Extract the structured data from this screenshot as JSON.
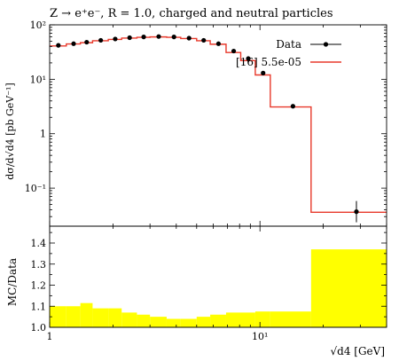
{
  "chart_data": {
    "type": "line",
    "title": "Z → e⁺e⁻, R = 1.0, charged and neutral particles",
    "xlabel": "√d4 [GeV]",
    "ylabel": "dσ/d√d4 [pb GeV⁻¹]",
    "xscale": "log",
    "yscale": "log",
    "xlim": [
      1,
      40
    ],
    "ylim": [
      0.02,
      100
    ],
    "x_ticks": [
      {
        "value": 1,
        "label": "1"
      },
      {
        "value": 10,
        "label": "10¹"
      }
    ],
    "y_ticks": [
      {
        "value": 100,
        "label": "10²"
      },
      {
        "value": 10,
        "label": "10¹"
      },
      {
        "value": 1,
        "label": "1"
      },
      {
        "value": 0.1,
        "label": "10⁻¹"
      }
    ],
    "legend_position": "top-right",
    "bins": [
      1.0,
      1.2,
      1.4,
      1.6,
      1.9,
      2.2,
      2.6,
      3.0,
      3.6,
      4.2,
      5.0,
      5.8,
      6.9,
      8.1,
      9.5,
      11.2,
      17.5,
      40.0
    ],
    "series": [
      {
        "name": "Data",
        "color": "#000000",
        "x": [
          1.1,
          1.3,
          1.5,
          1.75,
          2.05,
          2.4,
          2.8,
          3.3,
          3.9,
          4.6,
          5.4,
          6.35,
          7.5,
          8.8,
          10.35,
          14.35,
          28.75
        ],
        "y": [
          42,
          45,
          48,
          52,
          55,
          58,
          60,
          61,
          60,
          57,
          52,
          45,
          33,
          24,
          13,
          3.2,
          0.037
        ],
        "yerr": [
          2,
          2,
          2,
          2,
          2,
          2,
          2,
          2,
          2,
          2,
          2,
          2,
          1.5,
          1,
          0.6,
          0.2,
          0.01
        ]
      },
      {
        "name": "[16] 5.5e-05",
        "color": "#e8392b",
        "x": [
          1.1,
          1.3,
          1.5,
          1.75,
          2.05,
          2.4,
          2.8,
          3.3,
          3.9,
          4.6,
          5.4,
          6.35,
          7.5,
          8.8,
          10.35,
          14.35,
          28.75
        ],
        "y": [
          41,
          44.5,
          47,
          51,
          54,
          57,
          59,
          60,
          59,
          56,
          51,
          44,
          31,
          22,
          12,
          3.1,
          0.036
        ]
      }
    ],
    "ratio_panel": {
      "ylabel": "MC/Data",
      "ylim": [
        1.0,
        1.48
      ],
      "y_ticks": [
        {
          "value": 1.0,
          "label": "1.0"
        },
        {
          "value": 1.1,
          "label": "1.1"
        },
        {
          "value": 1.2,
          "label": "1.2"
        },
        {
          "value": 1.3,
          "label": "1.3"
        },
        {
          "value": 1.4,
          "label": "1.4"
        }
      ],
      "band_color": "#ffff00",
      "band_upper": [
        1.1,
        1.1,
        1.115,
        1.09,
        1.09,
        1.07,
        1.06,
        1.05,
        1.04,
        1.04,
        1.05,
        1.06,
        1.07,
        1.07,
        1.075,
        1.075,
        1.37
      ]
    }
  }
}
